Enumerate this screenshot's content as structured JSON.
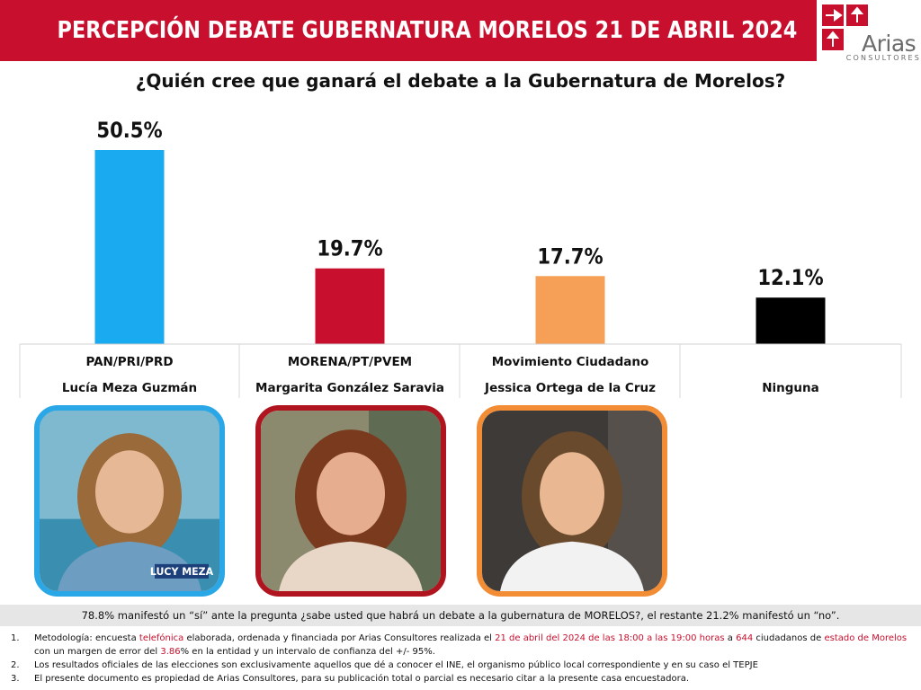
{
  "header": {
    "title": "PERCEPCIÓN DEBATE GUBERNATURA MORELOS 21 DE ABRIL 2024"
  },
  "logo": {
    "word": "Arias",
    "sub": "CONSULTORES"
  },
  "question": "¿Quién cree que ganará el debate a la Gubernatura de Morelos?",
  "chart_data": {
    "type": "bar",
    "categories": [
      "PAN/PRI/PRD",
      "MORENA/PT/PVEM",
      "Movimiento Ciudadano",
      "Ninguna"
    ],
    "candidates": [
      "Lucía Meza Guzmán",
      "Margarita González Saravia",
      "Jessica Ortega de la Cruz",
      "Ninguna"
    ],
    "values": [
      50.5,
      19.7,
      17.7,
      12.1
    ],
    "labels": [
      "50.5%",
      "19.7%",
      "17.7%",
      "12.1%"
    ],
    "colors": [
      "#19aaf0",
      "#c8102e",
      "#f5a056",
      "#000000"
    ],
    "unit": "%",
    "grid": false,
    "legend": "none"
  },
  "candidate_photos": [
    {
      "border_color": "#2aa7e6",
      "caption": "LUCY MEZA"
    },
    {
      "border_color": "#b0141f"
    },
    {
      "border_color": "#f28c35"
    }
  ],
  "note": "78.8% manifestó un “sí” ante la pregunta ¿sabe usted que habrá un debate a la gubernatura de MORELOS?, el restante 21.2% manifestó un “no”.",
  "footnotes": {
    "f1": {
      "num": "1.",
      "a": "Metodología: encuesta ",
      "b": "telefónica",
      "c": " elaborada, ordenada y financiada por Arias Consultores realizada el ",
      "d": "21 de abril del 2024 de las 18:00 a las 19:00 horas",
      "e": " a ",
      "f": "644",
      "g": " ciudadanos de ",
      "h": "estado de Morelos",
      "i": " con un margen de error del ",
      "j": "3.86",
      "k": "% en la entidad y un intervalo de confianza del +/- 95%."
    },
    "f2": {
      "num": "2.",
      "text": "Los resultados oficiales de las elecciones son exclusivamente aquellos que dé a conocer el INE, el organismo público local correspondiente  y en su caso el TEPJE"
    },
    "f3": {
      "num": "3.",
      "text": "El presente documento es propiedad de Arias Consultores, para su publicación total o parcial es necesario citar a la presente casa encuestadora."
    }
  }
}
